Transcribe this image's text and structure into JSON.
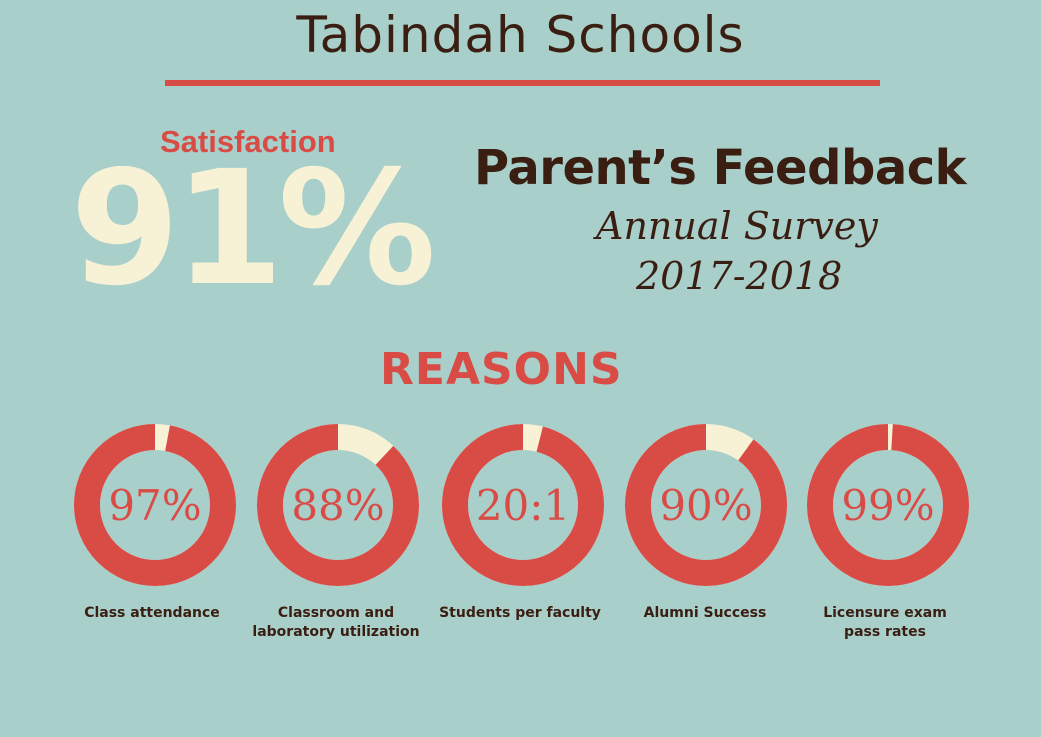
{
  "header": {
    "title": "Tabindah Schools"
  },
  "satisfaction": {
    "label": "Satisfaction",
    "value": "91%"
  },
  "feedback": {
    "title": "Parent’s Feedback",
    "subtitle": "Annual Survey",
    "years": "2017-2018"
  },
  "reasons": {
    "heading": "REASONS",
    "items": [
      {
        "value": "97%",
        "caption": "Class attendance",
        "fill": 0.97
      },
      {
        "value": "88%",
        "caption": "Classroom and laboratory utilization",
        "fill": 0.88
      },
      {
        "value": "20:1",
        "caption": "Students per faculty",
        "fill": 0.96
      },
      {
        "value": "90%",
        "caption": "Alumni Success",
        "fill": 0.9
      },
      {
        "value": "99%",
        "caption": "Licensure exam pass rates",
        "fill": 0.99
      }
    ]
  },
  "colors": {
    "background": "#a9cfcb",
    "accent": "#d94c45",
    "cream": "#f7f1d6",
    "dark": "#3a1e12"
  }
}
